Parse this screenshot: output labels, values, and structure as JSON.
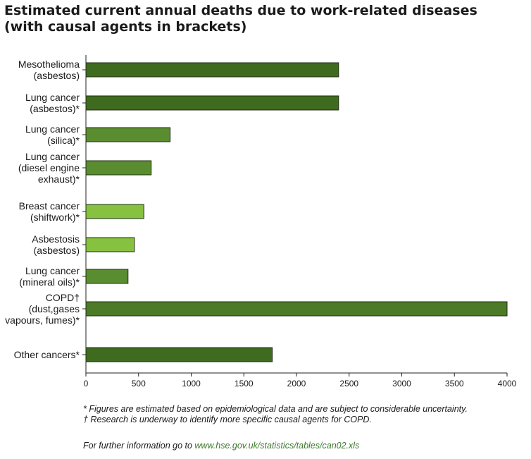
{
  "chart_data": {
    "type": "bar",
    "orientation": "horizontal",
    "title": "Estimated current annual deaths due to work-related diseases",
    "subtitle": "(with causal agents in brackets)",
    "categories": [
      {
        "lines": [
          "Mesothelioma",
          "(asbestos)"
        ],
        "value": 2400,
        "color": "#3f6b1f"
      },
      {
        "lines": [
          "Lung cancer",
          "(asbestos)*"
        ],
        "value": 2400,
        "color": "#3f6b1f"
      },
      {
        "lines": [
          "Lung cancer",
          "(silica)*"
        ],
        "value": 800,
        "color": "#5a8d2f"
      },
      {
        "lines": [
          "Lung cancer",
          "(diesel engine",
          "exhaust)*"
        ],
        "value": 620,
        "color": "#5a8d2f"
      },
      {
        "lines": [
          "Breast cancer",
          "(shiftwork)*"
        ],
        "value": 550,
        "color": "#86c240"
      },
      {
        "lines": [
          "Asbestosis",
          "(asbestos)"
        ],
        "value": 460,
        "color": "#86c240"
      },
      {
        "lines": [
          "Lung cancer",
          "(mineral oils)*"
        ],
        "value": 400,
        "color": "#5a8d2f"
      },
      {
        "lines": [
          "COPD†",
          "(dust,gases",
          "vapours, fumes)*"
        ],
        "value": 4000,
        "color": "#4c7a26"
      },
      {
        "lines": [
          "Other cancers*"
        ],
        "value": 1770,
        "color": "#3f6b1f"
      }
    ],
    "xlim": [
      0,
      4000
    ],
    "xticks": [
      0,
      500,
      1000,
      1500,
      2000,
      2500,
      3000,
      3500,
      4000
    ],
    "grid": false,
    "legend": "none"
  },
  "footnotes": [
    "*  Figures are estimated based on epidemiological data and are subject to considerable uncertainty.",
    "† Research is underway to identify more specific causal agents for COPD."
  ],
  "more_info": {
    "prefix": "For further information go to ",
    "url": "www.hse.gov.uk/statistics/tables/can02.xls"
  }
}
